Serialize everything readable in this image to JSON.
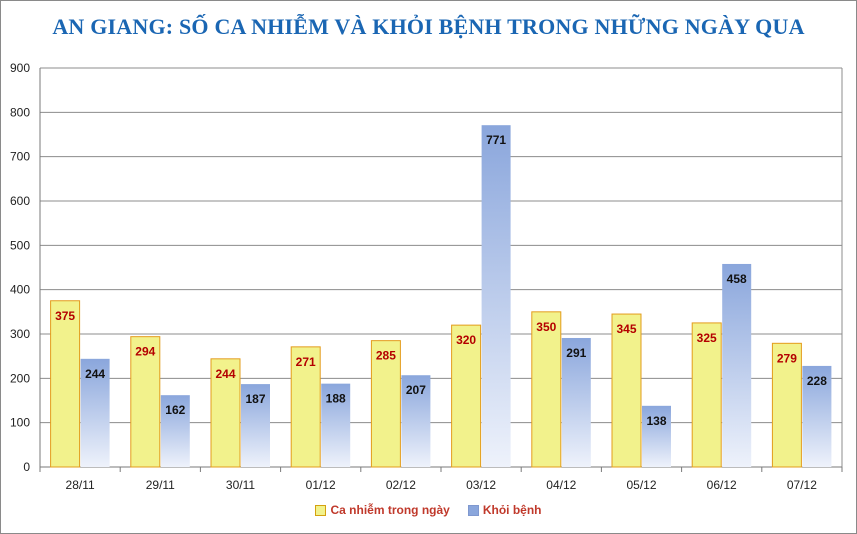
{
  "colors": {
    "title": "#1a66b3",
    "series_infected_fill": "#f2f28c",
    "series_infected_stroke": "#e39c1c",
    "series_infected_label": "#b40000",
    "series_recovered_top": "#8aa6dc",
    "series_recovered_bottom": "#eef2fb",
    "series_recovered_label": "#111111",
    "legend_text": "#c0392b"
  },
  "chart_data": {
    "type": "bar",
    "title": "AN GIANG: SỐ CA NHIỄM VÀ KHỎI BỆNH TRONG NHỮNG NGÀY QUA",
    "categories": [
      "28/11",
      "29/11",
      "30/11",
      "01/12",
      "02/12",
      "03/12",
      "04/12",
      "05/12",
      "06/12",
      "07/12"
    ],
    "series": [
      {
        "name": "Ca nhiễm trong ngày",
        "values": [
          375,
          294,
          244,
          271,
          285,
          320,
          350,
          345,
          325,
          279
        ]
      },
      {
        "name": "Khỏi bệnh",
        "values": [
          244,
          162,
          187,
          188,
          207,
          771,
          291,
          138,
          458,
          228
        ]
      }
    ],
    "ylim": [
      0,
      900
    ],
    "yticks": [
      0,
      100,
      200,
      300,
      400,
      500,
      600,
      700,
      800,
      900
    ],
    "grid": true,
    "legend_position": "bottom",
    "xlabel": "",
    "ylabel": ""
  }
}
